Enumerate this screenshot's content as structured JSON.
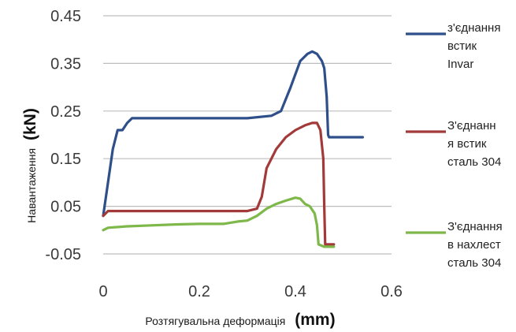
{
  "chart_data": {
    "type": "line",
    "xlabel": "Розтягувальна деформація",
    "xlabel_unit": "(mm)",
    "ylabel": "Навантаження",
    "ylabel_unit": "(kN)",
    "xlim": [
      0,
      0.6
    ],
    "ylim": [
      -0.05,
      0.45
    ],
    "x_ticks": [
      "0",
      "0.2",
      "0.4",
      "0.6"
    ],
    "y_ticks": [
      "0.45",
      "0.35",
      "0.25",
      "0.15",
      "0.05",
      "-0.05"
    ],
    "y_tick_values": [
      0.45,
      0.35,
      0.25,
      0.15,
      0.05,
      -0.05
    ],
    "grid": true,
    "legend_position": "right",
    "series": [
      {
        "name": "з'єднання встик Invar",
        "legend_lines": [
          "з'єднання",
          "встик",
          "Invar"
        ],
        "color": "#2f4f8a",
        "points": [
          [
            0,
            0.03
          ],
          [
            0.01,
            0.1
          ],
          [
            0.02,
            0.17
          ],
          [
            0.03,
            0.21
          ],
          [
            0.04,
            0.21
          ],
          [
            0.05,
            0.225
          ],
          [
            0.06,
            0.235
          ],
          [
            0.1,
            0.235
          ],
          [
            0.2,
            0.235
          ],
          [
            0.3,
            0.235
          ],
          [
            0.35,
            0.24
          ],
          [
            0.37,
            0.25
          ],
          [
            0.39,
            0.3
          ],
          [
            0.41,
            0.355
          ],
          [
            0.425,
            0.37
          ],
          [
            0.435,
            0.375
          ],
          [
            0.445,
            0.37
          ],
          [
            0.455,
            0.355
          ],
          [
            0.46,
            0.34
          ],
          [
            0.465,
            0.28
          ],
          [
            0.468,
            0.2
          ],
          [
            0.47,
            0.195
          ],
          [
            0.5,
            0.195
          ],
          [
            0.54,
            0.195
          ]
        ]
      },
      {
        "name": "З'єднання встик сталь 304",
        "legend_lines": [
          "З'єднанн",
          "я встик",
          "сталь 304"
        ],
        "color": "#a33a3a",
        "points": [
          [
            0,
            0.03
          ],
          [
            0.01,
            0.04
          ],
          [
            0.05,
            0.04
          ],
          [
            0.1,
            0.04
          ],
          [
            0.2,
            0.04
          ],
          [
            0.3,
            0.04
          ],
          [
            0.32,
            0.045
          ],
          [
            0.33,
            0.07
          ],
          [
            0.34,
            0.13
          ],
          [
            0.36,
            0.17
          ],
          [
            0.38,
            0.195
          ],
          [
            0.4,
            0.21
          ],
          [
            0.42,
            0.22
          ],
          [
            0.435,
            0.225
          ],
          [
            0.445,
            0.225
          ],
          [
            0.452,
            0.21
          ],
          [
            0.458,
            0.15
          ],
          [
            0.46,
            0.05
          ],
          [
            0.462,
            -0.03
          ],
          [
            0.47,
            -0.03
          ],
          [
            0.48,
            -0.03
          ]
        ]
      },
      {
        "name": "З'єднання в нахлест сталь 304",
        "legend_lines": [
          "З'єднання",
          "в нахлест",
          "сталь 304"
        ],
        "color": "#7fb84a",
        "points": [
          [
            0,
            0
          ],
          [
            0.01,
            0.005
          ],
          [
            0.05,
            0.008
          ],
          [
            0.1,
            0.01
          ],
          [
            0.15,
            0.012
          ],
          [
            0.2,
            0.013
          ],
          [
            0.25,
            0.013
          ],
          [
            0.28,
            0.018
          ],
          [
            0.3,
            0.02
          ],
          [
            0.32,
            0.03
          ],
          [
            0.34,
            0.045
          ],
          [
            0.36,
            0.055
          ],
          [
            0.38,
            0.062
          ],
          [
            0.4,
            0.068
          ],
          [
            0.41,
            0.066
          ],
          [
            0.42,
            0.055
          ],
          [
            0.43,
            0.05
          ],
          [
            0.44,
            0.035
          ],
          [
            0.445,
            0.01
          ],
          [
            0.448,
            -0.03
          ],
          [
            0.46,
            -0.035
          ],
          [
            0.48,
            -0.035
          ]
        ]
      }
    ]
  }
}
